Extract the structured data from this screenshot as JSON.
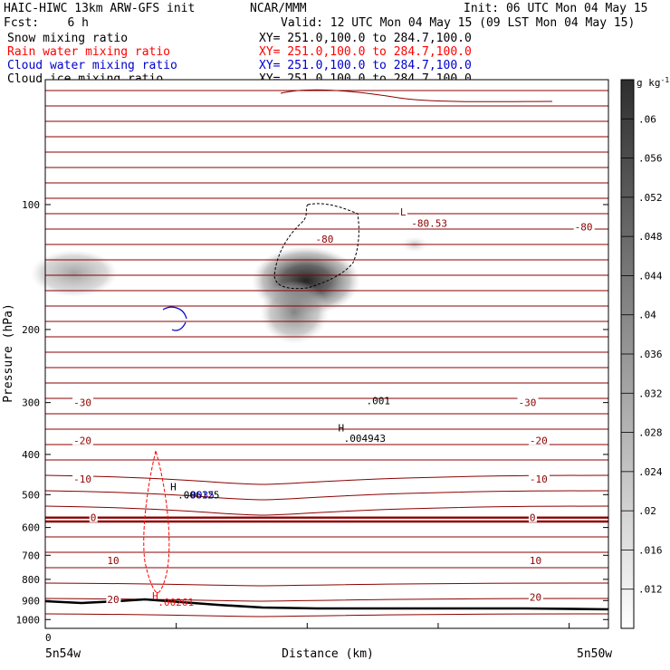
{
  "header": {
    "left_title": "HAIC-HIWC 13km ARW-GFS init",
    "center_title": "NCAR/MMM",
    "init": "Init: 06 UTC Mon 04 May 15",
    "fcst": "Fcst:    6 h",
    "valid": "Valid: 12 UTC Mon 04 May 15 (09 LST Mon 04 May 15)"
  },
  "fields": [
    {
      "label": "Snow mixing ratio",
      "xy": "XY= 251.0,100.0 to 284.7,100.0",
      "color": "#000000"
    },
    {
      "label": "Rain water mixing ratio",
      "xy": "XY= 251.0,100.0 to 284.7,100.0",
      "color": "#ff0000"
    },
    {
      "label": "Cloud water mixing ratio",
      "xy": "XY= 251.0,100.0 to 284.7,100.0",
      "color": "#0000cc"
    },
    {
      "label": "Cloud ice mixing ratio",
      "xy": "XY= 251.0,100.0 to 284.7,100.0",
      "color": "#000000"
    }
  ],
  "colors": {
    "temperature_contour": "#8b0000",
    "freezing_line": "#8b0000",
    "rain": "#ff0000",
    "cloud_water": "#0000cc",
    "snow": "#000000",
    "terrain": "#000000"
  },
  "chart_data": {
    "type": "cross-section",
    "ylabel": "Pressure (hPa)",
    "xlabel": "Distance (km)",
    "y_scale": "log",
    "ylim": [
      1050,
      50
    ],
    "y_ticks": [
      100,
      200,
      300,
      400,
      500,
      600,
      700,
      800,
      900,
      1000
    ],
    "x_origin_label": "0",
    "x_left_label": "5n54w",
    "x_right_label": "5n50w",
    "colorbar": {
      "unit": "g kg",
      "unit_exp": "-1",
      "ticks": [
        ".012",
        ".016",
        ".02",
        ".024",
        ".028",
        ".032",
        ".036",
        ".04",
        ".044",
        ".048",
        ".052",
        ".056",
        ".06"
      ],
      "range": [
        0.008,
        0.064
      ]
    },
    "temperature_labels": [
      {
        "text": "-80",
        "p": 121,
        "x": 0.48
      },
      {
        "text": "-80",
        "p": 113,
        "x": 0.94
      },
      {
        "text": "-80.53",
        "p": 111,
        "x": 0.65
      },
      {
        "text": "L",
        "p": 104,
        "x": 0.63
      },
      {
        "text": "-30",
        "p": 300,
        "x": 0.05
      },
      {
        "text": "-30",
        "p": 300,
        "x": 0.84
      },
      {
        "text": "-20",
        "p": 370,
        "x": 0.05
      },
      {
        "text": "-20",
        "p": 370,
        "x": 0.86
      },
      {
        "text": "-10",
        "p": 458,
        "x": 0.05
      },
      {
        "text": "-10",
        "p": 458,
        "x": 0.86
      },
      {
        "text": "0",
        "p": 568,
        "x": 0.08
      },
      {
        "text": "0",
        "p": 568,
        "x": 0.86
      },
      {
        "text": "10",
        "p": 720,
        "x": 0.11
      },
      {
        "text": "10",
        "p": 720,
        "x": 0.86
      },
      {
        "text": "20",
        "p": 895,
        "x": 0.11
      },
      {
        "text": "20",
        "p": 883,
        "x": 0.86
      }
    ],
    "annotations": [
      {
        "text": ".001",
        "p": 303,
        "x": 0.57,
        "color": "#000000"
      },
      {
        "text": "H",
        "p": 352,
        "x": 0.52,
        "color": "#000000"
      },
      {
        "text": ".004943",
        "p": 373,
        "x": 0.53,
        "color": "#000000"
      },
      {
        "text": "H",
        "p": 488,
        "x": 0.222,
        "color": "#000000"
      },
      {
        "text": ".006125",
        "p": 510,
        "x": 0.235,
        "color": "#000000"
      },
      {
        "text": ".0035",
        "p": 510,
        "x": 0.247,
        "color": "#0000cc"
      },
      {
        "text": "H",
        "p": 893,
        "x": 0.19,
        "color": "#ff0000"
      },
      {
        "text": ".00261",
        "p": 926,
        "x": 0.2,
        "color": "#ff0000"
      }
    ]
  }
}
